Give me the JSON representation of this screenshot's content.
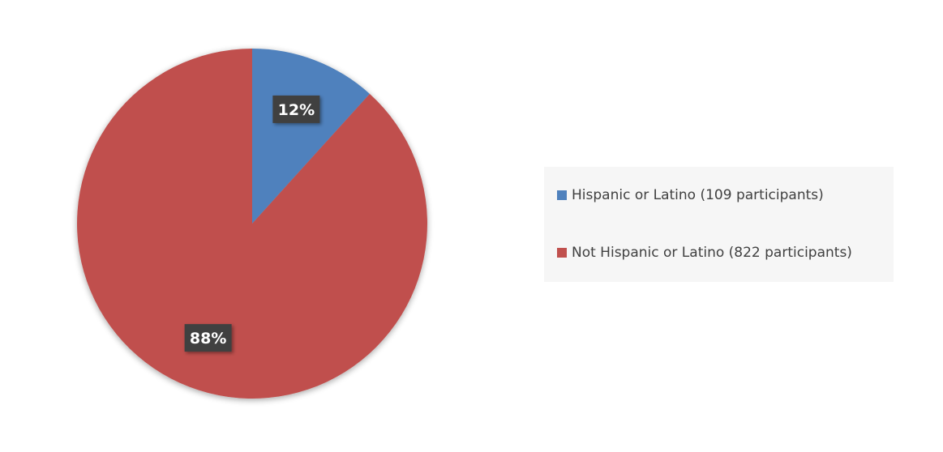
{
  "chart_data": {
    "type": "pie",
    "title": "",
    "slices": [
      {
        "label": "Hispanic or Latino (109 participants)",
        "value": 109,
        "percent_label": "12%",
        "color": "#4f81bd"
      },
      {
        "label": "Not Hispanic or Latino (822 participants)",
        "value": 822,
        "percent_label": "88%",
        "color": "#c0504d"
      }
    ],
    "start_angle": "12 o'clock",
    "direction": "clockwise",
    "legend_position": "right"
  },
  "colors": {
    "label_box": "#404040",
    "legend_background": "#f6f6f6",
    "legend_text": "#404040"
  }
}
